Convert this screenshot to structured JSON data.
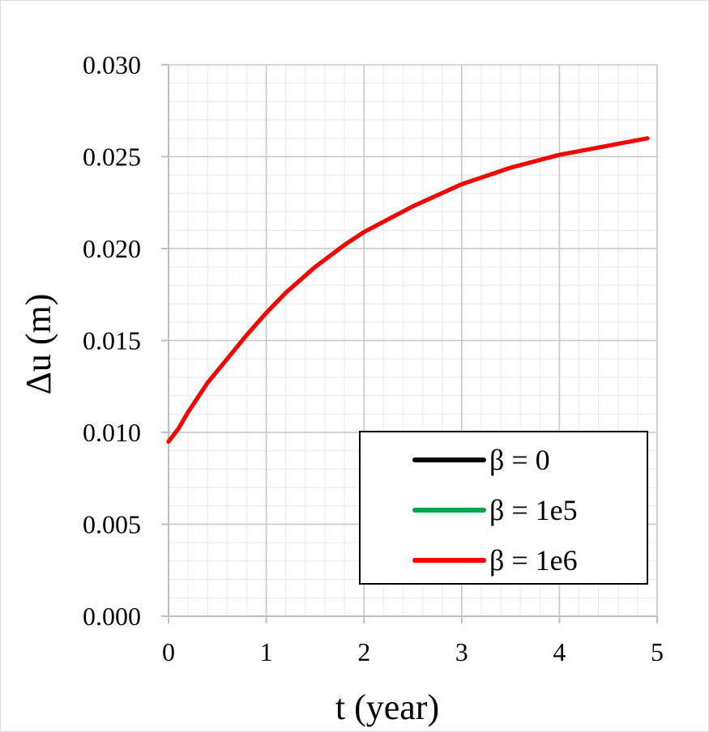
{
  "chart_data": {
    "type": "line",
    "title": "",
    "xlabel": "t (year)",
    "ylabel": "Δu (m)",
    "xlim": [
      0,
      5
    ],
    "ylim": [
      0,
      0.03
    ],
    "x_ticks": [
      "0",
      "1",
      "2",
      "3",
      "4",
      "5"
    ],
    "y_ticks": [
      "0.000",
      "0.005",
      "0.010",
      "0.015",
      "0.020",
      "0.025",
      "0.030"
    ],
    "grid": true,
    "minor_grid": true,
    "legend_position": "bottom-right",
    "series": [
      {
        "name": "β = 0",
        "color": "#000000",
        "x": [
          0,
          0.1,
          0.2,
          0.4,
          0.6,
          0.8,
          1.0,
          1.2,
          1.5,
          1.8,
          2.0,
          2.5,
          3.0,
          3.5,
          4.0,
          4.5,
          4.9
        ],
        "y": [
          0.0095,
          0.0102,
          0.0111,
          0.0127,
          0.014,
          0.0153,
          0.0165,
          0.0176,
          0.019,
          0.0202,
          0.0209,
          0.0223,
          0.0235,
          0.0244,
          0.0251,
          0.0256,
          0.026
        ]
      },
      {
        "name": "β = 1e5",
        "color": "#00a550",
        "x": [
          0,
          0.1,
          0.2,
          0.4,
          0.6,
          0.8,
          1.0,
          1.2,
          1.5,
          1.8,
          2.0,
          2.5,
          3.0,
          3.5,
          4.0,
          4.5,
          4.9
        ],
        "y": [
          0.0095,
          0.0102,
          0.0111,
          0.0127,
          0.014,
          0.0153,
          0.0165,
          0.0176,
          0.019,
          0.0202,
          0.0209,
          0.0223,
          0.0235,
          0.0244,
          0.0251,
          0.0256,
          0.026
        ]
      },
      {
        "name": "β = 1e6",
        "color": "#ff0000",
        "x": [
          0,
          0.1,
          0.2,
          0.4,
          0.6,
          0.8,
          1.0,
          1.2,
          1.5,
          1.8,
          2.0,
          2.5,
          3.0,
          3.5,
          4.0,
          4.5,
          4.9
        ],
        "y": [
          0.0095,
          0.0102,
          0.0111,
          0.0127,
          0.014,
          0.0153,
          0.0165,
          0.0176,
          0.019,
          0.0202,
          0.0209,
          0.0223,
          0.0235,
          0.0244,
          0.0251,
          0.0256,
          0.026
        ]
      }
    ]
  }
}
